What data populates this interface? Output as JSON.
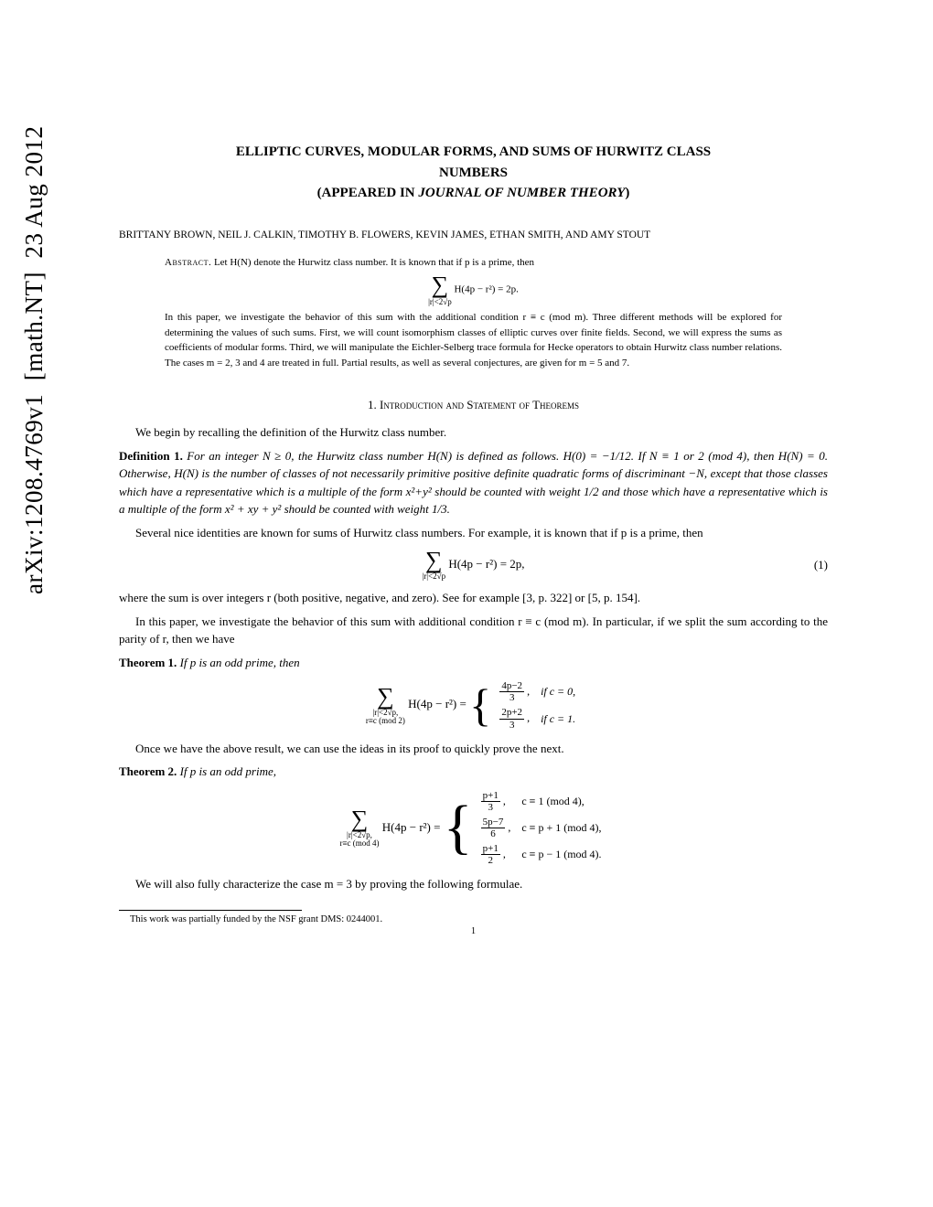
{
  "arxiv": {
    "id": "arXiv:1208.4769v1",
    "category": "[math.NT]",
    "date": "23 Aug 2012"
  },
  "title": {
    "line1": "ELLIPTIC CURVES, MODULAR FORMS, AND SUMS OF HURWITZ CLASS",
    "line2": "NUMBERS",
    "line3_prefix": "(APPEARED IN ",
    "line3_journal": "JOURNAL OF NUMBER THEORY",
    "line3_suffix": ")"
  },
  "authors": "BRITTANY BROWN, NEIL J. CALKIN, TIMOTHY B. FLOWERS, KEVIN JAMES, ETHAN SMITH, AND AMY STOUT",
  "abstract": {
    "label": "Abstract.",
    "text1": " Let H(N) denote the Hurwitz class number. It is known that if p is a prime, then",
    "eq_sum_sub": "|r|<2√p",
    "eq_body": "H(4p − r²) = 2p.",
    "text2": "In this paper, we investigate the behavior of this sum with the additional condition r ≡ c (mod m). Three different methods will be explored for determining the values of such sums. First, we will count isomorphism classes of elliptic curves over finite fields. Second, we will express the sums as coefficients of modular forms. Third, we will manipulate the Eichler-Selberg trace formula for Hecke operators to obtain Hurwitz class number relations. The cases m = 2, 3 and 4 are treated in full. Partial results, as well as several conjectures, are given for m = 5 and 7."
  },
  "section1": {
    "heading": "1. Introduction and Statement of Theorems",
    "intro": "We begin by recalling the definition of the Hurwitz class number.",
    "def1_label": "Definition 1.",
    "def1_body": " For an integer N ≥ 0, the Hurwitz class number H(N) is defined as follows. H(0) = −1/12. If N ≡ 1 or 2 (mod 4), then H(N) = 0. Otherwise, H(N) is the number of classes of not necessarily primitive positive definite quadratic forms of discriminant −N, except that those classes which have a representative which is a multiple of the form x²+y² should be counted with weight 1/2 and those which have a representative which is a multiple of the form x² + xy + y² should be counted with weight 1/3.",
    "para2": "Several nice identities are known for sums of Hurwitz class numbers. For example, it is known that if p is a prime, then",
    "eq1_sub": "|r|<2√p",
    "eq1_body": "H(4p − r²) = 2p,",
    "eq1_num": "(1)",
    "para3": "where the sum is over integers r (both positive, negative, and zero). See for example [3, p. 322] or [5, p. 154].",
    "para4": "In this paper, we investigate the behavior of this sum with additional condition r ≡ c (mod m). In particular, if we split the sum according to the parity of r, then we have",
    "thm1_label": "Theorem 1.",
    "thm1_body": " If p is an odd prime, then",
    "thm1_sub1": "|r|<2√p,",
    "thm1_sub2": "r≡c (mod 2)",
    "thm1_lhs": "H(4p − r²) = ",
    "thm1_c1_num": "4p−2",
    "thm1_c1_den": "3",
    "thm1_c1_cond": "if c = 0,",
    "thm1_c2_num": "2p+2",
    "thm1_c2_den": "3",
    "thm1_c2_cond": "if c = 1.",
    "para5": "Once we have the above result, we can use the ideas in its proof to quickly prove the next.",
    "thm2_label": "Theorem 2.",
    "thm2_body": " If p is an odd prime,",
    "thm2_sub1": "|r|<2√p,",
    "thm2_sub2": "r≡c (mod 4)",
    "thm2_lhs": "H(4p − r²) = ",
    "thm2_r1_num": "p+1",
    "thm2_r1_den": "3",
    "thm2_r1_cond": "c ≡   1   (mod 4),",
    "thm2_r2_num": "5p−7",
    "thm2_r2_den": "6",
    "thm2_r2_cond": "c ≡ p + 1   (mod 4),",
    "thm2_r3_num": "p+1",
    "thm2_r3_den": "2",
    "thm2_r3_cond": "c ≡ p − 1   (mod 4).",
    "para6": "We will also fully characterize the case m = 3 by proving the following formulae."
  },
  "footnote": "This work was partially funded by the NSF grant DMS: 0244001.",
  "pagenum": "1"
}
